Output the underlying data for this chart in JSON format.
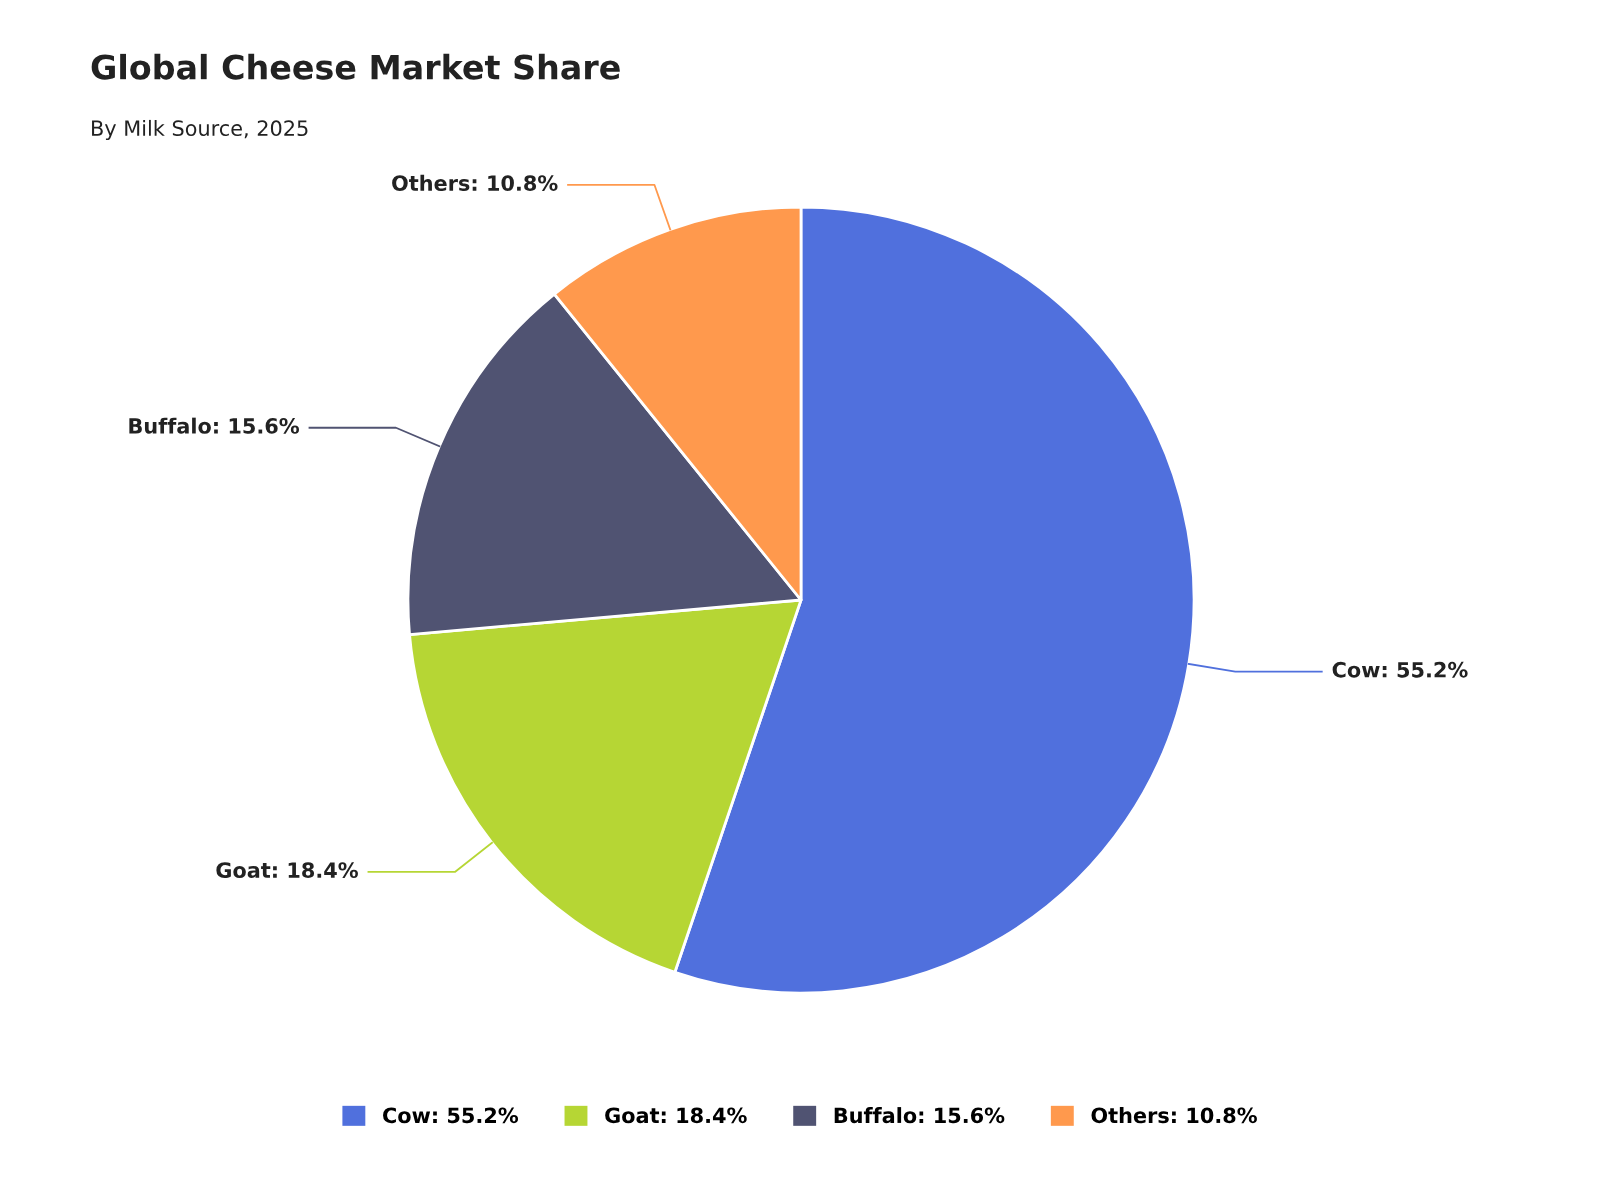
{
  "chart_data": {
    "type": "pie",
    "title": "Global Cheese Market Share",
    "subtitle": "By Milk Source, 2025",
    "categories": [
      "Cow",
      "Goat",
      "Buffalo",
      "Others"
    ],
    "values": [
      55.2,
      18.4,
      15.6,
      10.8
    ],
    "value_labels": [
      "55.2%",
      "18.4%",
      "15.6%",
      "10.8%"
    ],
    "colors": [
      "#5070dd",
      "#b6d634",
      "#505372",
      "#ff994d"
    ],
    "legend": "bottom"
  }
}
